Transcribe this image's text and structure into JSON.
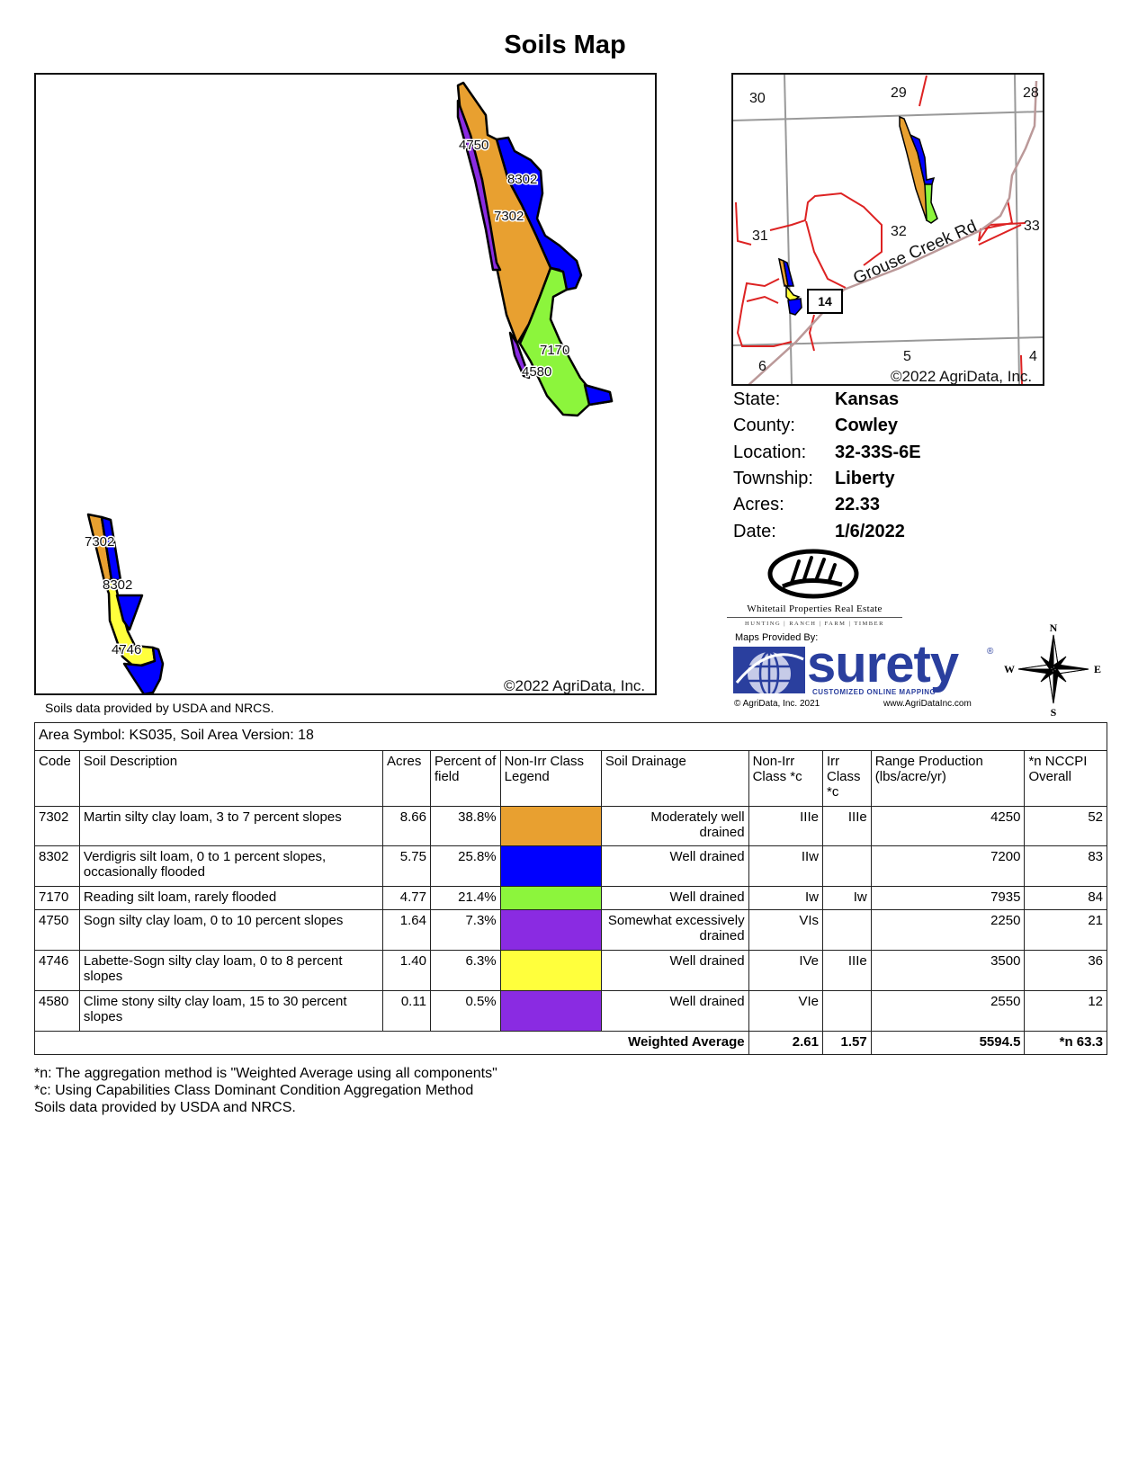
{
  "title": "Soils Map",
  "main_map": {
    "copyright": "©2022 AgriData, Inc.",
    "labels_north": [
      "4750",
      "8302",
      "7302",
      "7170",
      "4580"
    ],
    "labels_south": [
      "7302",
      "8302",
      "4746"
    ]
  },
  "mini_map": {
    "sections": [
      "30",
      "29",
      "28",
      "31",
      "32",
      "33",
      "6",
      "5",
      "4"
    ],
    "road_name": "Grouse Creek Rd",
    "highway_shield": "14",
    "copyright": "©2022 AgriData, Inc."
  },
  "info": [
    {
      "label": "State:",
      "value": "Kansas"
    },
    {
      "label": "County:",
      "value": "Cowley"
    },
    {
      "label": "Location:",
      "value": "32-33S-6E"
    },
    {
      "label": "Township:",
      "value": "Liberty"
    },
    {
      "label": "Acres:",
      "value": "22.33"
    },
    {
      "label": "Date:",
      "value": "1/6/2022"
    }
  ],
  "logos": {
    "whitetail_name": "Whitetail Properties Real Estate",
    "whitetail_tagline": "HUNTING | RANCH | FARM | TIMBER",
    "maps_provided_by": "Maps Provided By:",
    "surety_name": "surety",
    "surety_tagline": "CUSTOMIZED ONLINE MAPPING",
    "agridata_copyright": "© AgriData, Inc. 2021",
    "agridata_url": "www.AgriDataInc.com"
  },
  "compass": {
    "n": "N",
    "s": "S",
    "e": "E",
    "w": "W"
  },
  "usda_note": "Soils data provided by USDA and NRCS.",
  "table": {
    "area_symbol": "Area Symbol: KS035, Soil Area Version: 18",
    "headers": [
      "Code",
      "Soil Description",
      "Acres",
      "Percent of field",
      "Non-Irr Class Legend",
      "Soil Drainage",
      "Non-Irr Class *c",
      "Irr Class *c",
      "Range Production (lbs/acre/yr)",
      "*n NCCPI Overall"
    ],
    "rows": [
      {
        "code": "7302",
        "description": "Martin silty clay loam, 3 to 7 percent slopes",
        "acres": "8.66",
        "percent": "38.8%",
        "color": "#E8A030",
        "drainage": "Moderately well drained",
        "non_irr": "IIIe",
        "irr": "IIIe",
        "range": "4250",
        "nccpi": "52"
      },
      {
        "code": "8302",
        "description": "Verdigris silt loam, 0 to 1 percent slopes, occasionally flooded",
        "acres": "5.75",
        "percent": "25.8%",
        "color": "#0000FF",
        "drainage": "Well drained",
        "non_irr": "IIw",
        "irr": "",
        "range": "7200",
        "nccpi": "83"
      },
      {
        "code": "7170",
        "description": "Reading silt loam, rarely flooded",
        "acres": "4.77",
        "percent": "21.4%",
        "color": "#8CF53C",
        "drainage": "Well drained",
        "non_irr": "Iw",
        "irr": "Iw",
        "range": "7935",
        "nccpi": "84"
      },
      {
        "code": "4750",
        "description": "Sogn silty clay loam, 0 to 10 percent slopes",
        "acres": "1.64",
        "percent": "7.3%",
        "color": "#8A2BE2",
        "drainage": "Somewhat excessively drained",
        "non_irr": "VIs",
        "irr": "",
        "range": "2250",
        "nccpi": "21"
      },
      {
        "code": "4746",
        "description": "Labette-Sogn silty clay loam, 0 to 8 percent slopes",
        "acres": "1.40",
        "percent": "6.3%",
        "color": "#FFFF3C",
        "drainage": "Well drained",
        "non_irr": "IVe",
        "irr": "IIIe",
        "range": "3500",
        "nccpi": "36"
      },
      {
        "code": "4580",
        "description": "Clime stony silty clay loam, 15 to 30 percent slopes",
        "acres": "0.11",
        "percent": "0.5%",
        "color": "#8A2BE2",
        "drainage": "Well drained",
        "non_irr": "VIe",
        "irr": "",
        "range": "2550",
        "nccpi": "12"
      }
    ],
    "weighted": {
      "label": "Weighted Average",
      "non_irr": "2.61",
      "irr": "1.57",
      "range": "5594.5",
      "nccpi": "*n 63.3"
    }
  },
  "footnotes": [
    "*n: The aggregation method is \"Weighted Average using all components\"",
    "*c: Using Capabilities Class Dominant Condition Aggregation Method",
    "Soils data provided by USDA and NRCS."
  ]
}
